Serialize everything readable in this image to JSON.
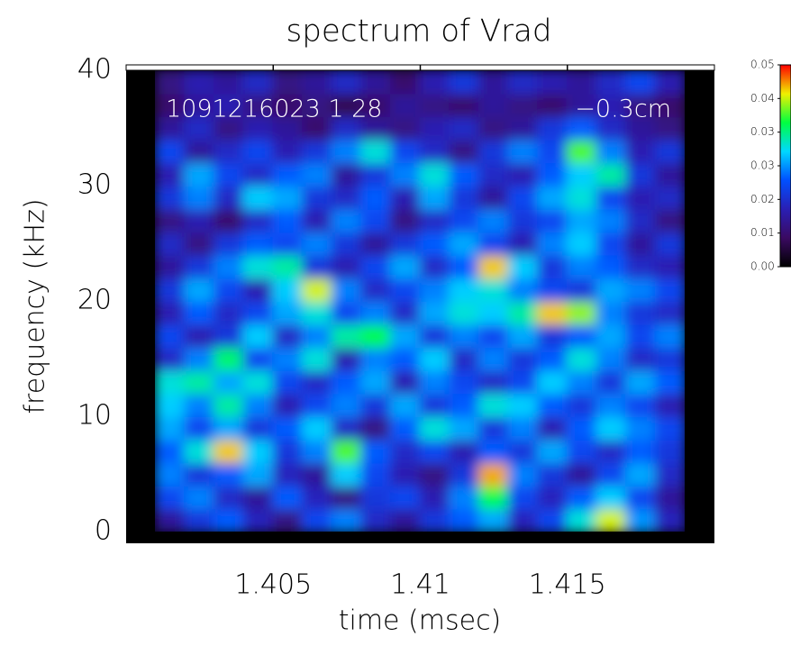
{
  "chart_data": {
    "type": "heatmap",
    "title": "spectrum of Vrad",
    "xlabel": "time (msec)",
    "ylabel": "frequency (kHz)",
    "annotations": [
      "1091216023 1 28",
      "−0.3cm"
    ],
    "xlim": [
      1.4,
      1.42
    ],
    "xticks": [
      1.405,
      1.41,
      1.415
    ],
    "ylim": [
      0,
      40
    ],
    "yticks": [
      0,
      10,
      20,
      30,
      40
    ],
    "x": [
      1.4015,
      1.4025,
      1.4035,
      1.4045,
      1.4055,
      1.4065,
      1.4075,
      1.4085,
      1.4095,
      1.4105,
      1.4115,
      1.4125,
      1.4135,
      1.4145,
      1.4155,
      1.4165,
      1.4175,
      1.4185
    ],
    "y": [
      1,
      3,
      5,
      7,
      9,
      11,
      13,
      15,
      17,
      19,
      21,
      23,
      25,
      27,
      29,
      31,
      33,
      35,
      37,
      39
    ],
    "z": [
      [
        0.012,
        0.018,
        0.022,
        0.015,
        0.01,
        0.02,
        0.024,
        0.016,
        0.012,
        0.018,
        0.022,
        0.026,
        0.015,
        0.02,
        0.03,
        0.042,
        0.025,
        0.015
      ],
      [
        0.02,
        0.024,
        0.016,
        0.012,
        0.022,
        0.015,
        0.01,
        0.018,
        0.02,
        0.014,
        0.024,
        0.035,
        0.02,
        0.015,
        0.022,
        0.028,
        0.02,
        0.012
      ],
      [
        0.024,
        0.018,
        0.022,
        0.026,
        0.015,
        0.012,
        0.028,
        0.02,
        0.014,
        0.01,
        0.018,
        0.045,
        0.024,
        0.018,
        0.012,
        0.02,
        0.026,
        0.016
      ],
      [
        0.022,
        0.03,
        0.044,
        0.028,
        0.018,
        0.024,
        0.038,
        0.022,
        0.016,
        0.02,
        0.014,
        0.022,
        0.018,
        0.026,
        0.02,
        0.016,
        0.022,
        0.018
      ],
      [
        0.026,
        0.02,
        0.026,
        0.018,
        0.022,
        0.028,
        0.016,
        0.01,
        0.022,
        0.03,
        0.026,
        0.018,
        0.024,
        0.014,
        0.022,
        0.028,
        0.024,
        0.02
      ],
      [
        0.028,
        0.024,
        0.032,
        0.024,
        0.014,
        0.02,
        0.024,
        0.018,
        0.026,
        0.018,
        0.022,
        0.03,
        0.028,
        0.022,
        0.018,
        0.024,
        0.02,
        0.014
      ],
      [
        0.03,
        0.032,
        0.026,
        0.03,
        0.02,
        0.016,
        0.022,
        0.026,
        0.014,
        0.024,
        0.02,
        0.016,
        0.02,
        0.028,
        0.024,
        0.018,
        0.026,
        0.022
      ],
      [
        0.016,
        0.024,
        0.034,
        0.02,
        0.024,
        0.03,
        0.014,
        0.024,
        0.022,
        0.028,
        0.016,
        0.024,
        0.018,
        0.022,
        0.03,
        0.024,
        0.016,
        0.018
      ],
      [
        0.02,
        0.014,
        0.018,
        0.028,
        0.016,
        0.024,
        0.032,
        0.035,
        0.026,
        0.018,
        0.024,
        0.02,
        0.026,
        0.018,
        0.022,
        0.026,
        0.02,
        0.024
      ],
      [
        0.014,
        0.022,
        0.016,
        0.02,
        0.026,
        0.03,
        0.02,
        0.024,
        0.016,
        0.026,
        0.03,
        0.028,
        0.032,
        0.044,
        0.04,
        0.024,
        0.018,
        0.016
      ],
      [
        0.018,
        0.026,
        0.02,
        0.014,
        0.028,
        0.042,
        0.024,
        0.016,
        0.02,
        0.024,
        0.028,
        0.03,
        0.024,
        0.02,
        0.018,
        0.026,
        0.024,
        0.02
      ],
      [
        0.012,
        0.018,
        0.024,
        0.03,
        0.032,
        0.018,
        0.014,
        0.02,
        0.026,
        0.016,
        0.022,
        0.044,
        0.028,
        0.018,
        0.024,
        0.022,
        0.016,
        0.014
      ],
      [
        0.016,
        0.01,
        0.018,
        0.022,
        0.02,
        0.024,
        0.018,
        0.012,
        0.018,
        0.022,
        0.026,
        0.02,
        0.014,
        0.024,
        0.028,
        0.02,
        0.012,
        0.018
      ],
      [
        0.01,
        0.014,
        0.008,
        0.016,
        0.022,
        0.014,
        0.024,
        0.02,
        0.01,
        0.016,
        0.02,
        0.024,
        0.018,
        0.02,
        0.026,
        0.024,
        0.016,
        0.01
      ],
      [
        0.018,
        0.024,
        0.016,
        0.028,
        0.026,
        0.018,
        0.016,
        0.022,
        0.014,
        0.026,
        0.018,
        0.012,
        0.02,
        0.026,
        0.03,
        0.02,
        0.014,
        0.016
      ],
      [
        0.014,
        0.026,
        0.02,
        0.016,
        0.022,
        0.024,
        0.012,
        0.018,
        0.024,
        0.03,
        0.022,
        0.016,
        0.014,
        0.022,
        0.028,
        0.032,
        0.018,
        0.012
      ],
      [
        0.02,
        0.012,
        0.016,
        0.02,
        0.014,
        0.018,
        0.024,
        0.03,
        0.02,
        0.016,
        0.01,
        0.018,
        0.024,
        0.02,
        0.038,
        0.024,
        0.014,
        0.018
      ],
      [
        0.012,
        0.016,
        0.01,
        0.014,
        0.012,
        0.008,
        0.016,
        0.012,
        0.01,
        0.014,
        0.016,
        0.01,
        0.012,
        0.018,
        0.022,
        0.016,
        0.012,
        0.01
      ],
      [
        0.008,
        0.012,
        0.014,
        0.01,
        0.008,
        0.01,
        0.006,
        0.008,
        0.012,
        0.01,
        0.008,
        0.012,
        0.01,
        0.008,
        0.012,
        0.014,
        0.01,
        0.008
      ],
      [
        0.01,
        0.014,
        0.012,
        0.016,
        0.01,
        0.012,
        0.016,
        0.012,
        0.008,
        0.014,
        0.018,
        0.012,
        0.016,
        0.014,
        0.012,
        0.016,
        0.02,
        0.014
      ]
    ],
    "zlim": [
      0,
      0.05
    ],
    "zticks": [
      {
        "value": 0,
        "label": "0.00"
      },
      {
        "value": 0.00833,
        "label": "0.01"
      },
      {
        "value": 0.01667,
        "label": "0.02"
      },
      {
        "value": 0.025,
        "label": "0.03"
      },
      {
        "value": 0.03333,
        "label": "0.03"
      },
      {
        "value": 0.04167,
        "label": "0.04"
      },
      {
        "value": 0.05,
        "label": "0.05"
      }
    ],
    "colorscale": [
      "#000000",
      "#3a0a62",
      "#2a1fb4",
      "#0050ff",
      "#00d8ff",
      "#00ff40",
      "#f0f000",
      "#ff0000"
    ]
  }
}
